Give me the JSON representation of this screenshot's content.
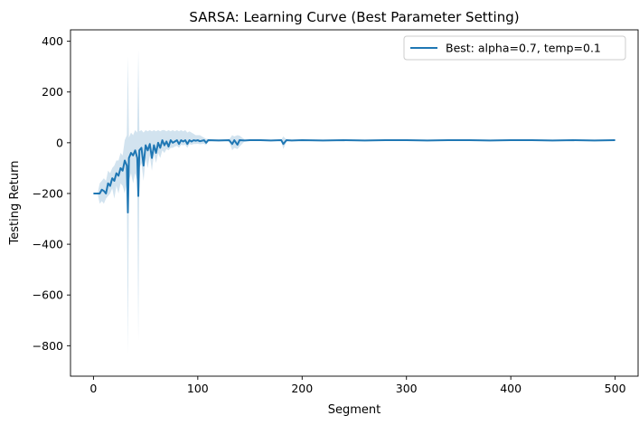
{
  "chart_data": {
    "type": "line",
    "title": "SARSA: Learning Curve (Best Parameter Setting)",
    "xlabel": "Segment",
    "ylabel": "Testing Return",
    "xlim": [
      -22,
      522
    ],
    "ylim": [
      -920,
      445
    ],
    "x_ticks": [
      0,
      100,
      200,
      300,
      400,
      500
    ],
    "x_tick_labels": [
      "0",
      "100",
      "200",
      "300",
      "400",
      "500"
    ],
    "y_ticks": [
      -800,
      -600,
      -400,
      -200,
      0,
      200,
      400
    ],
    "y_tick_labels": [
      "−800",
      "−600",
      "−400",
      "−200",
      "0",
      "200",
      "400"
    ],
    "grid": false,
    "legend_position": "top-right",
    "colors": {
      "line": "#1f77b4",
      "band": "#a6c8e0"
    },
    "series": [
      {
        "name": "Best: alpha=0.7, temp=0.1",
        "x": [
          0,
          4,
          6,
          8,
          10,
          12,
          14,
          16,
          18,
          20,
          22,
          24,
          26,
          28,
          30,
          32,
          33,
          34,
          36,
          38,
          40,
          42,
          43,
          44,
          46,
          48,
          50,
          52,
          54,
          56,
          58,
          60,
          62,
          64,
          66,
          68,
          70,
          72,
          74,
          76,
          78,
          80,
          82,
          84,
          86,
          88,
          90,
          92,
          94,
          96,
          98,
          100,
          102,
          104,
          106,
          108,
          110,
          120,
          130,
          133,
          135,
          138,
          140,
          145,
          150,
          160,
          170,
          180,
          182,
          185,
          190,
          200,
          220,
          240,
          260,
          280,
          300,
          320,
          340,
          360,
          380,
          400,
          420,
          440,
          460,
          480,
          500
        ],
        "y": [
          -200,
          -200,
          -200,
          -185,
          -190,
          -200,
          -160,
          -170,
          -140,
          -150,
          -120,
          -130,
          -100,
          -110,
          -70,
          -90,
          -275,
          -60,
          -40,
          -50,
          -30,
          -60,
          -210,
          -30,
          -20,
          -90,
          -10,
          -30,
          -5,
          -60,
          -10,
          -40,
          0,
          -20,
          10,
          -10,
          5,
          -15,
          10,
          0,
          5,
          10,
          -5,
          10,
          5,
          10,
          -5,
          10,
          5,
          10,
          8,
          10,
          6,
          8,
          10,
          0,
          10,
          9,
          10,
          -5,
          10,
          -8,
          10,
          9,
          10,
          10,
          9,
          10,
          -5,
          10,
          9,
          10,
          9,
          10,
          9,
          10,
          10,
          9,
          10,
          10,
          9,
          10,
          10,
          9,
          10,
          9,
          10
        ],
        "lower": [
          -200,
          -200,
          -240,
          -230,
          -240,
          -220,
          -210,
          -200,
          -180,
          -220,
          -170,
          -200,
          -160,
          -170,
          -200,
          -160,
          -830,
          -150,
          -120,
          -160,
          -120,
          -150,
          -780,
          -100,
          -80,
          -150,
          -60,
          -100,
          -50,
          -110,
          -45,
          -80,
          -40,
          -60,
          -30,
          -40,
          -25,
          -30,
          -20,
          -20,
          -15,
          -12,
          -20,
          -8,
          -10,
          -8,
          -20,
          -5,
          -8,
          -5,
          -5,
          -4,
          -6,
          -5,
          -4,
          -10,
          5,
          6,
          5,
          -30,
          -20,
          -25,
          -15,
          6,
          7,
          7,
          6,
          7,
          -25,
          5,
          6,
          7,
          6,
          7,
          6,
          7,
          7,
          6,
          7,
          7,
          6,
          7,
          7,
          6,
          7,
          6,
          7
        ],
        "upper": [
          -200,
          -200,
          -160,
          -150,
          -140,
          -150,
          -110,
          -120,
          -100,
          -90,
          -70,
          -70,
          -40,
          -50,
          10,
          30,
          340,
          20,
          40,
          30,
          50,
          40,
          365,
          45,
          50,
          40,
          50,
          45,
          50,
          45,
          50,
          45,
          50,
          45,
          50,
          50,
          45,
          50,
          45,
          50,
          45,
          50,
          45,
          50,
          45,
          50,
          40,
          45,
          40,
          35,
          30,
          30,
          30,
          25,
          20,
          15,
          15,
          14,
          13,
          30,
          25,
          30,
          28,
          13,
          13,
          13,
          12,
          13,
          25,
          13,
          12,
          13,
          12,
          13,
          12,
          13,
          13,
          12,
          13,
          13,
          12,
          13,
          13,
          12,
          13,
          12,
          13
        ]
      }
    ]
  }
}
